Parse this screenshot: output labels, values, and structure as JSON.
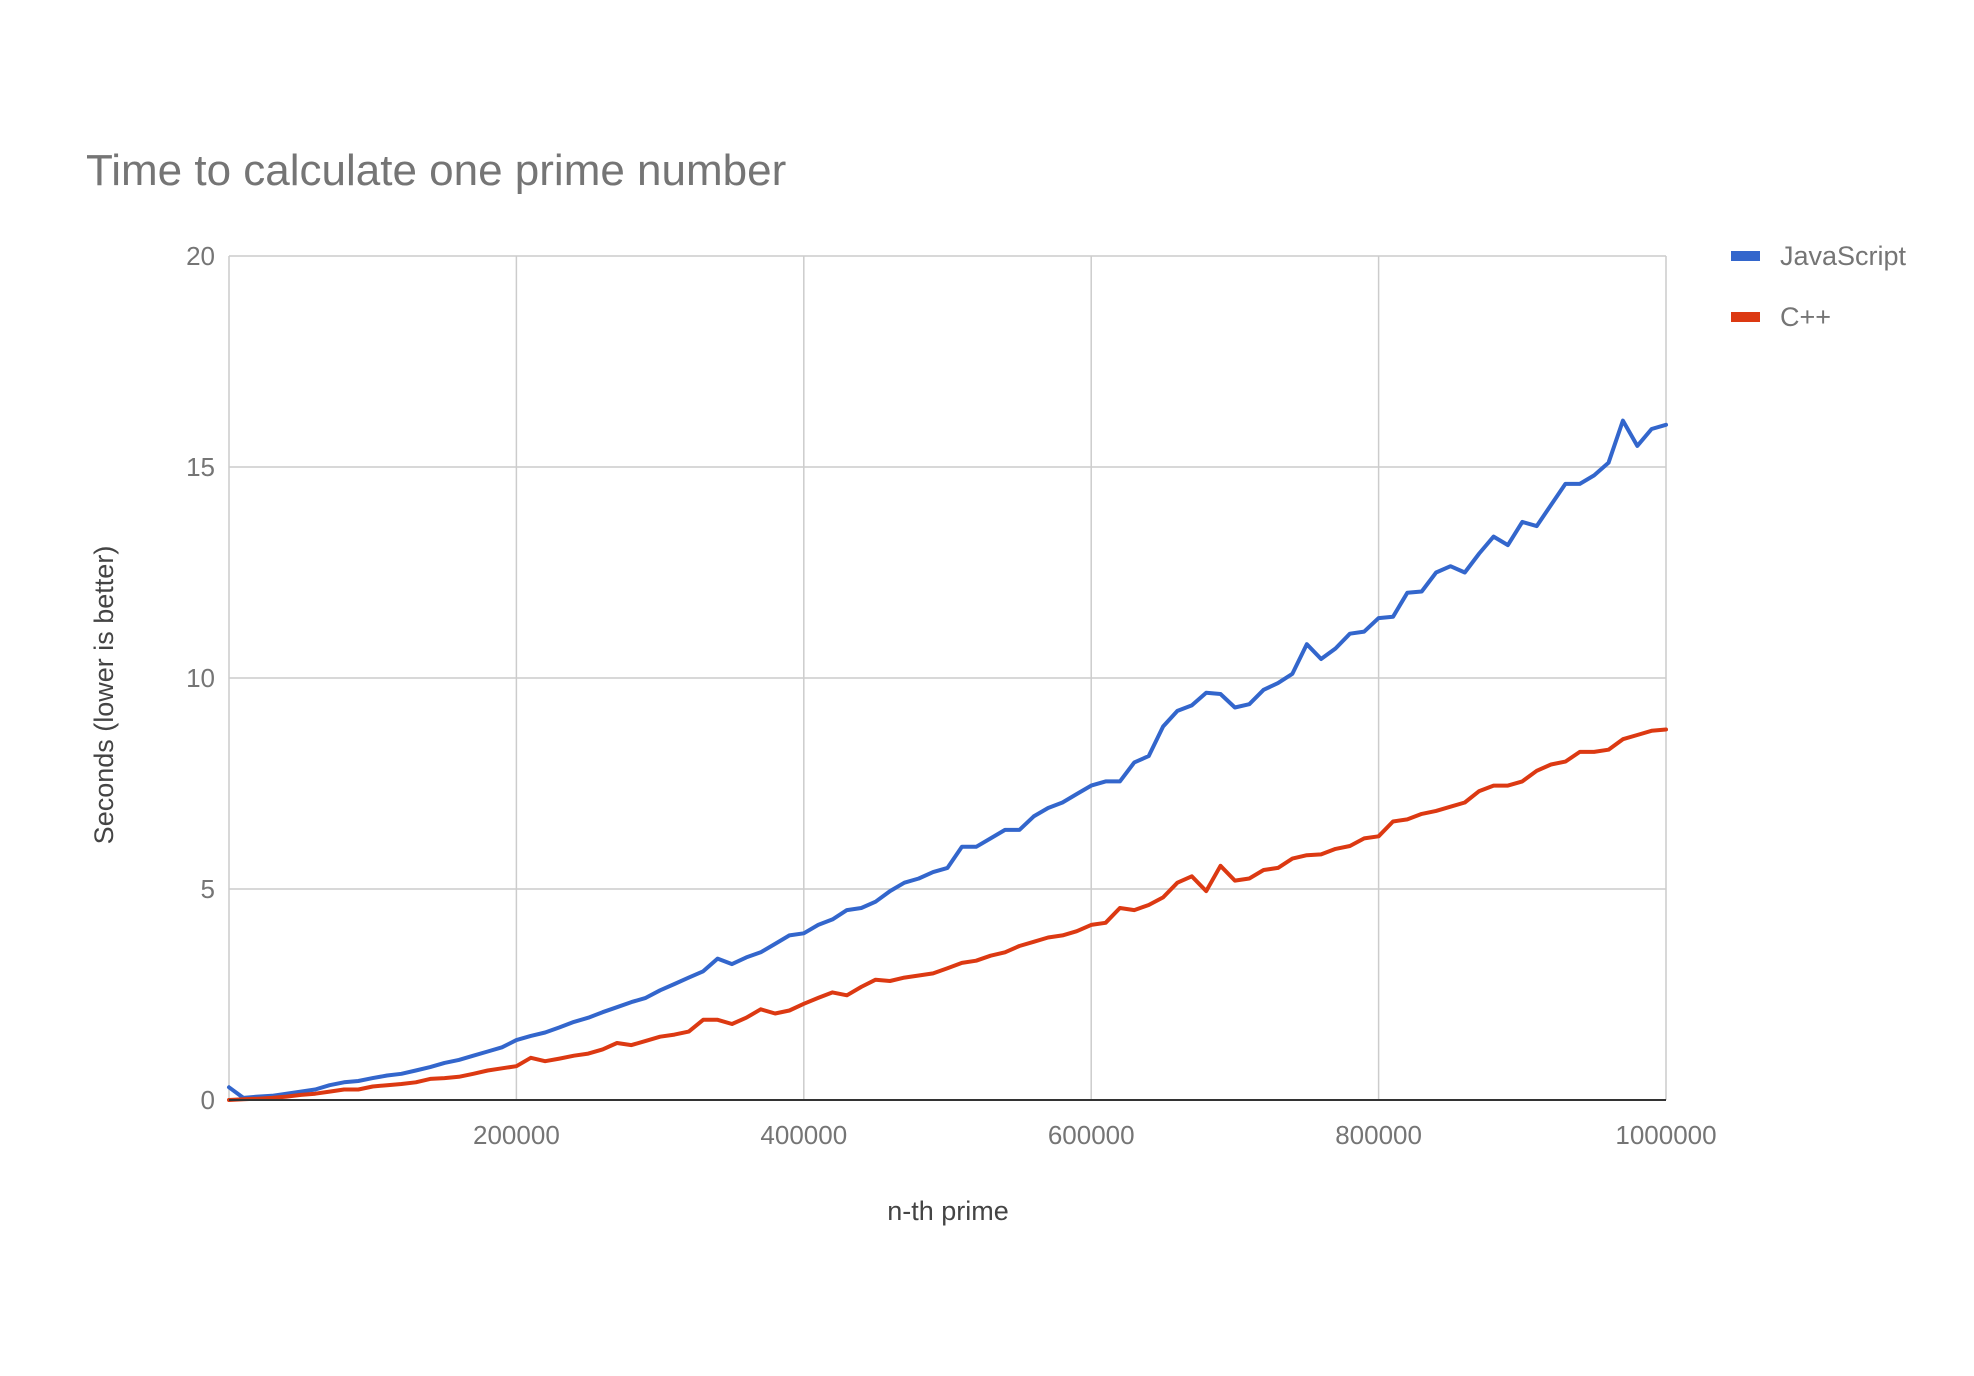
{
  "chart_data": {
    "type": "line",
    "title": "Time to calculate one prime number",
    "xlabel": "n-th prime",
    "ylabel": "Seconds (lower is better)",
    "xlim": [
      0,
      1000000
    ],
    "ylim": [
      0,
      20
    ],
    "x_ticks": [
      200000,
      400000,
      600000,
      800000,
      1000000
    ],
    "y_ticks": [
      0,
      5,
      10,
      15,
      20
    ],
    "grid": true,
    "legend_position": "right",
    "x": [
      0,
      10000,
      20000,
      30000,
      40000,
      50000,
      60000,
      70000,
      80000,
      90000,
      100000,
      110000,
      120000,
      130000,
      140000,
      150000,
      160000,
      170000,
      180000,
      190000,
      200000,
      210000,
      220000,
      230000,
      240000,
      250000,
      260000,
      270000,
      280000,
      290000,
      300000,
      310000,
      320000,
      330000,
      340000,
      350000,
      360000,
      370000,
      380000,
      390000,
      400000,
      410000,
      420000,
      430000,
      440000,
      450000,
      460000,
      470000,
      480000,
      490000,
      500000,
      510000,
      520000,
      530000,
      540000,
      550000,
      560000,
      570000,
      580000,
      590000,
      600000,
      610000,
      620000,
      630000,
      640000,
      650000,
      660000,
      670000,
      680000,
      690000,
      700000,
      710000,
      720000,
      730000,
      740000,
      750000,
      760000,
      770000,
      780000,
      790000,
      800000,
      810000,
      820000,
      830000,
      840000,
      850000,
      860000,
      870000,
      880000,
      890000,
      900000,
      910000,
      920000,
      930000,
      940000,
      950000,
      960000,
      970000,
      980000,
      990000,
      1000000
    ],
    "series": [
      {
        "name": "JavaScript",
        "color": "#3366cc",
        "values": [
          0.3,
          0.05,
          0.08,
          0.1,
          0.15,
          0.2,
          0.25,
          0.35,
          0.42,
          0.45,
          0.52,
          0.58,
          0.62,
          0.7,
          0.78,
          0.88,
          0.95,
          1.05,
          1.15,
          1.25,
          1.42,
          1.52,
          1.6,
          1.72,
          1.85,
          1.95,
          2.08,
          2.2,
          2.32,
          2.42,
          2.6,
          2.75,
          2.9,
          3.05,
          3.35,
          3.22,
          3.38,
          3.5,
          3.7,
          3.9,
          3.95,
          4.15,
          4.28,
          4.5,
          4.55,
          4.7,
          4.95,
          5.15,
          5.25,
          5.4,
          5.5,
          6.0,
          6.0,
          6.2,
          6.4,
          6.4,
          6.72,
          6.92,
          7.05,
          7.25,
          7.45,
          7.55,
          7.55,
          8.0,
          8.15,
          8.85,
          9.22,
          9.35,
          9.65,
          9.62,
          9.3,
          9.38,
          9.72,
          9.88,
          10.1,
          10.8,
          10.45,
          10.7,
          11.05,
          11.1,
          11.42,
          11.45,
          12.02,
          12.05,
          12.5,
          12.65,
          12.5,
          12.95,
          13.35,
          13.15,
          13.7,
          13.6,
          14.1,
          14.6,
          14.6,
          14.8,
          15.1,
          16.1,
          15.5,
          15.9,
          16.0
        ]
      },
      {
        "name": "C++",
        "color": "#dc3912",
        "values": [
          0.0,
          0.02,
          0.03,
          0.05,
          0.08,
          0.12,
          0.15,
          0.2,
          0.25,
          0.25,
          0.32,
          0.35,
          0.38,
          0.42,
          0.5,
          0.52,
          0.55,
          0.62,
          0.7,
          0.75,
          0.8,
          1.0,
          0.92,
          0.98,
          1.05,
          1.1,
          1.2,
          1.35,
          1.3,
          1.4,
          1.5,
          1.55,
          1.62,
          1.9,
          1.9,
          1.8,
          1.95,
          2.15,
          2.05,
          2.12,
          2.28,
          2.42,
          2.55,
          2.48,
          2.68,
          2.85,
          2.82,
          2.9,
          2.95,
          3.0,
          3.12,
          3.25,
          3.3,
          3.42,
          3.5,
          3.65,
          3.75,
          3.85,
          3.9,
          4.0,
          4.15,
          4.2,
          4.55,
          4.5,
          4.62,
          4.8,
          5.15,
          5.3,
          4.95,
          5.55,
          5.2,
          5.25,
          5.45,
          5.5,
          5.72,
          5.8,
          5.82,
          5.95,
          6.02,
          6.2,
          6.25,
          6.6,
          6.65,
          6.78,
          6.85,
          6.95,
          7.05,
          7.32,
          7.45,
          7.45,
          7.55,
          7.8,
          7.95,
          8.02,
          8.25,
          8.25,
          8.3,
          8.55,
          8.65,
          8.75,
          8.78
        ]
      }
    ]
  }
}
